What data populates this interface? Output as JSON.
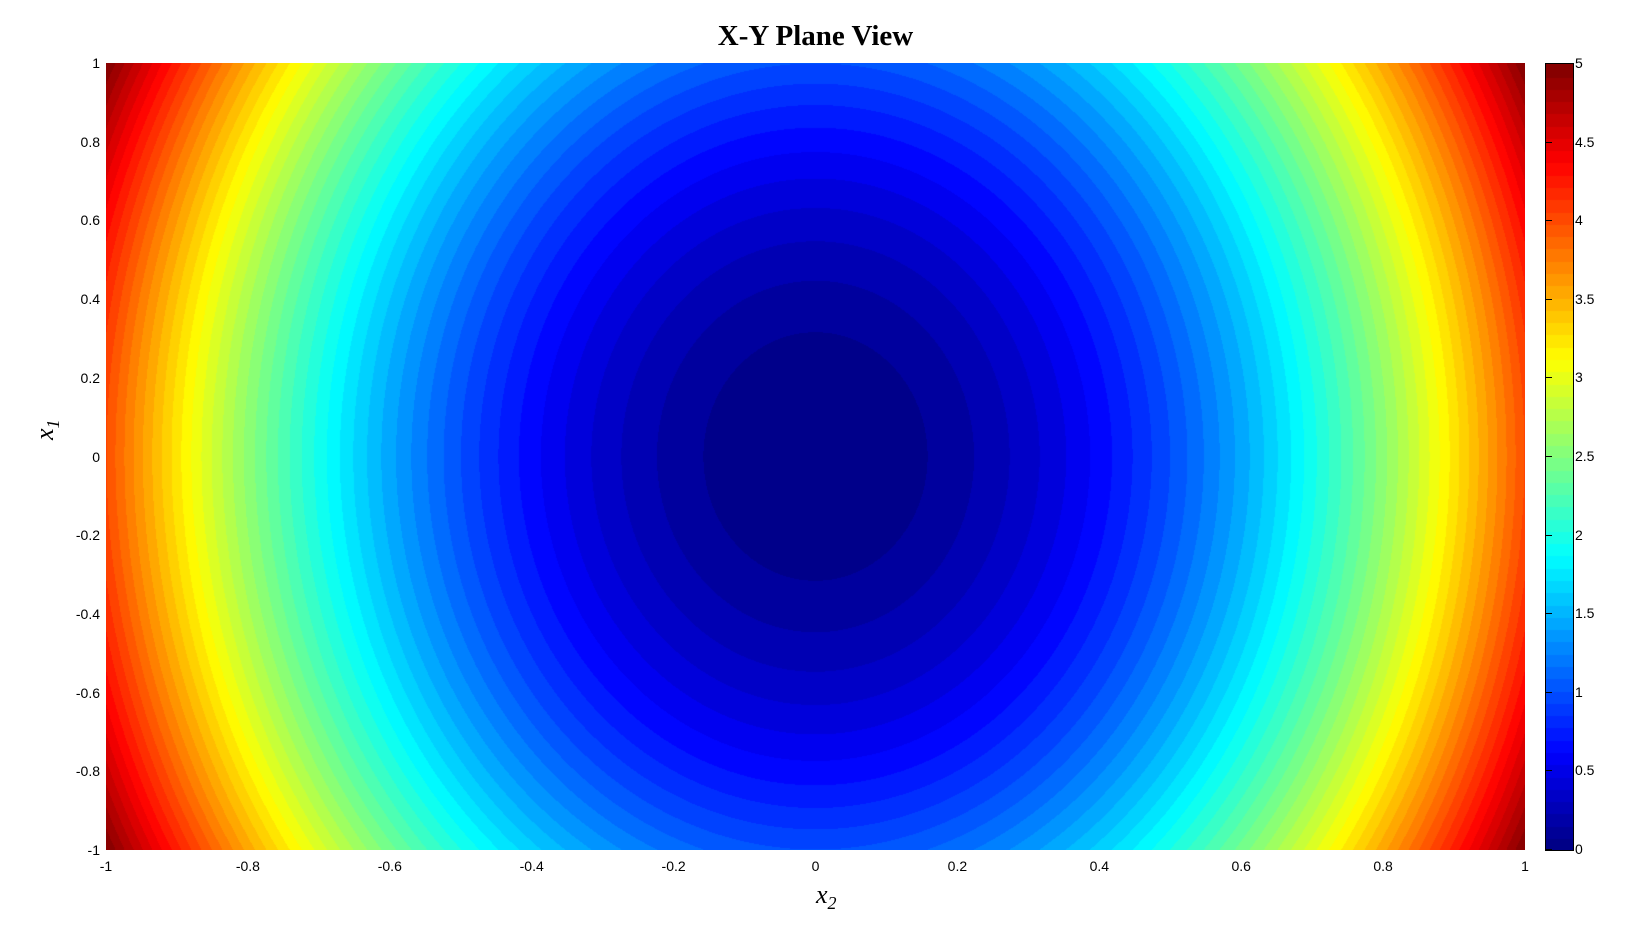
{
  "chart_data": {
    "type": "heatmap",
    "title": "X-Y Plane View",
    "xlabel": "x",
    "xlabel_sub": "2",
    "ylabel": "x",
    "ylabel_sub": "1",
    "xlim": [
      -1,
      1
    ],
    "ylim": [
      -1,
      1
    ],
    "xticks": [
      "-1",
      "-0.8",
      "-0.6",
      "-0.4",
      "-0.2",
      "0",
      "0.2",
      "0.4",
      "0.6",
      "0.8",
      "1"
    ],
    "yticks": [
      "1",
      "0.8",
      "0.6",
      "0.4",
      "0.2",
      "0",
      "-0.2",
      "-0.4",
      "-0.6",
      "-0.8",
      "-1"
    ],
    "colorbar": {
      "range": [
        0,
        5
      ],
      "ticks": [
        "5",
        "4.5",
        "4",
        "3.5",
        "3",
        "2.5",
        "2",
        "1.5",
        "1",
        "0.5",
        "0"
      ],
      "colormap": "jet"
    },
    "surface": "approx z = 4*x2^2 + x1^2 (filled contours, minimum 0 at center, maximum 5 at corners)",
    "contour_levels": 50
  }
}
